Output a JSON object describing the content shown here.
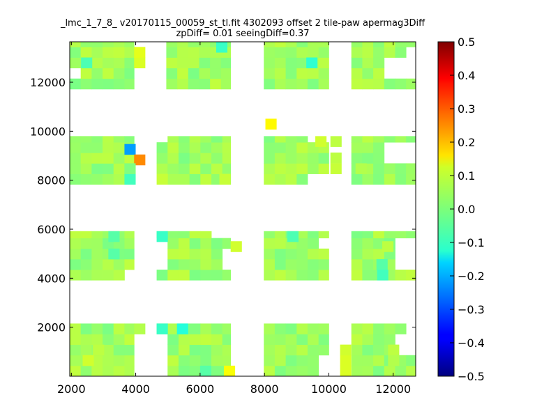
{
  "chart_data": {
    "type": "heatmap",
    "title": "_lmc_1_7_8_ v20170115_00059_st_tl.fit 4302093 offset 2 tile-paw apermag3Diff",
    "subtitle": "zpDiff= 0.01 seeingDiff=0.37",
    "xlabel": "",
    "ylabel": "",
    "xlim": [
      1950,
      12700
    ],
    "ylim": [
      0,
      13650
    ],
    "xticks": [
      2000,
      4000,
      6000,
      8000,
      10000,
      12000
    ],
    "yticks": [
      2000,
      4000,
      6000,
      8000,
      10000,
      12000
    ],
    "colorbar": {
      "range": [
        -0.5,
        0.5
      ],
      "ticks": [
        "0.5",
        "0.4",
        "0.3",
        "0.2",
        "0.1",
        "0.0",
        "−0.1",
        "−0.2",
        "−0.3",
        "−0.4",
        "−0.5"
      ],
      "colormap": "jet"
    },
    "cell_size": [
      340,
      430
    ],
    "default_value": 0.03,
    "blocks": [
      {
        "x": [
          1950,
          3950
        ],
        "y": [
          11720,
          13650
        ]
      },
      {
        "x": [
          4950,
          6950
        ],
        "y": [
          11720,
          13650
        ]
      },
      {
        "x": [
          7980,
          10000
        ],
        "y": [
          11720,
          13650
        ]
      },
      {
        "x": [
          10700,
          12700
        ],
        "y": [
          11720,
          13650
        ]
      },
      {
        "x": [
          1950,
          3950
        ],
        "y": [
          7830,
          9800
        ]
      },
      {
        "x": [
          4650,
          6950
        ],
        "y": [
          7830,
          9800
        ]
      },
      {
        "x": [
          7980,
          10000
        ],
        "y": [
          7830,
          9800
        ]
      },
      {
        "x": [
          10700,
          12700
        ],
        "y": [
          7830,
          9800
        ]
      },
      {
        "x": [
          1950,
          3950
        ],
        "y": [
          3920,
          5920
        ]
      },
      {
        "x": [
          4650,
          6950
        ],
        "y": [
          3920,
          5920
        ]
      },
      {
        "x": [
          7980,
          10000
        ],
        "y": [
          3920,
          5920
        ]
      },
      {
        "x": [
          10700,
          12700
        ],
        "y": [
          3920,
          5920
        ]
      },
      {
        "x": [
          1950,
          3950
        ],
        "y": [
          0,
          2150
        ]
      },
      {
        "x": [
          4650,
          6950
        ],
        "y": [
          0,
          2150
        ]
      },
      {
        "x": [
          7980,
          10000
        ],
        "y": [
          0,
          2150
        ]
      },
      {
        "x": [
          10700,
          12700
        ],
        "y": [
          0,
          2150
        ]
      }
    ],
    "gaps": [
      {
        "x": [
          1950,
          2300
        ],
        "y": [
          12150,
          12580
        ]
      },
      {
        "x": [
          3950,
          4300
        ],
        "y": [
          11720,
          12150
        ]
      },
      {
        "x": [
          11850,
          12700
        ],
        "y": [
          12150,
          13220
        ]
      },
      {
        "x": [
          12350,
          12700
        ],
        "y": [
          13220,
          13650
        ]
      },
      {
        "x": [
          11850,
          12700
        ],
        "y": [
          8700,
          9550
        ]
      },
      {
        "x": [
          9200,
          9500
        ],
        "y": [
          8300,
          8700
        ]
      },
      {
        "x": [
          9500,
          10000
        ],
        "y": [
          7830,
          8300
        ]
      },
      {
        "x": [
          4650,
          4950
        ],
        "y": [
          9370,
          9800
        ]
      },
      {
        "x": [
          4650,
          4950
        ],
        "y": [
          7830,
          8300
        ]
      },
      {
        "x": [
          9500,
          10000
        ],
        "y": [
          9370,
          9800
        ]
      },
      {
        "x": [
          6350,
          6950
        ],
        "y": [
          5500,
          5920
        ]
      },
      {
        "x": [
          6600,
          6950
        ],
        "y": [
          4350,
          5080
        ]
      },
      {
        "x": [
          4650,
          4950
        ],
        "y": [
          4350,
          5500
        ]
      },
      {
        "x": [
          3600,
          3950
        ],
        "y": [
          3920,
          4350
        ]
      },
      {
        "x": [
          11950,
          12700
        ],
        "y": [
          4350,
          5500
        ]
      },
      {
        "x": [
          9600,
          10000
        ],
        "y": [
          5080,
          5500
        ]
      },
      {
        "x": [
          4650,
          4950
        ],
        "y": [
          0,
          1700
        ]
      },
      {
        "x": [
          11950,
          12700
        ],
        "y": [
          1020,
          1700
        ]
      },
      {
        "x": [
          12350,
          12700
        ],
        "y": [
          1700,
          2150
        ]
      },
      {
        "x": [
          9800,
          10000
        ],
        "y": [
          0,
          1000
        ]
      }
    ],
    "cells": [
      {
        "x": 3950,
        "y": 12580,
        "value": 0.09
      },
      {
        "x": 3950,
        "y": 13010,
        "value": 0.1
      },
      {
        "x": 2300,
        "y": 12580,
        "value": -0.05
      },
      {
        "x": 6500,
        "y": 13220,
        "value": -0.07
      },
      {
        "x": 9300,
        "y": 12580,
        "value": -0.08
      },
      {
        "x": 8030,
        "y": 10080,
        "value": 0.13
      },
      {
        "x": 3650,
        "y": 9050,
        "value": -0.22
      },
      {
        "x": 3950,
        "y": 8620,
        "value": 0.24
      },
      {
        "x": 3650,
        "y": 7830,
        "value": -0.06
      },
      {
        "x": 3650,
        "y": 8260,
        "value": 0.0
      },
      {
        "x": 9580,
        "y": 9370,
        "value": 0.08
      },
      {
        "x": 10050,
        "y": 8700,
        "value": 0.06
      },
      {
        "x": 10050,
        "y": 9370,
        "value": 0.06
      },
      {
        "x": 10050,
        "y": 8260,
        "value": 0.07
      },
      {
        "x": 10830,
        "y": 8260,
        "value": 0.05
      },
      {
        "x": 6600,
        "y": 7830,
        "value": 0.07
      },
      {
        "x": 4650,
        "y": 7830,
        "value": 0.07
      },
      {
        "x": 4650,
        "y": 5490,
        "value": -0.07
      },
      {
        "x": 6950,
        "y": 5080,
        "value": 0.08
      },
      {
        "x": 3150,
        "y": 4780,
        "value": -0.04
      },
      {
        "x": 3150,
        "y": 5490,
        "value": -0.04
      },
      {
        "x": 8710,
        "y": 5490,
        "value": -0.05
      },
      {
        "x": 11480,
        "y": 4350,
        "value": -0.04
      },
      {
        "x": 11500,
        "y": 3920,
        "value": -0.06
      },
      {
        "x": 11660,
        "y": 5080,
        "value": 0.06
      },
      {
        "x": 3950,
        "y": 1720,
        "value": 0.05
      },
      {
        "x": 4650,
        "y": 1720,
        "value": -0.07
      },
      {
        "x": 5280,
        "y": 1720,
        "value": -0.09
      },
      {
        "x": 2670,
        "y": 860,
        "value": 0.06
      },
      {
        "x": 2350,
        "y": 430,
        "value": 0.08
      },
      {
        "x": 6740,
        "y": 0,
        "value": 0.12
      },
      {
        "x": 6000,
        "y": 0,
        "value": -0.04
      },
      {
        "x": 10350,
        "y": 0,
        "value": 0.09
      },
      {
        "x": 10350,
        "y": 430,
        "value": 0.09
      },
      {
        "x": 10350,
        "y": 860,
        "value": 0.08
      },
      {
        "x": 11840,
        "y": 860,
        "value": 0.06
      },
      {
        "x": 11840,
        "y": 430,
        "value": 0.05
      }
    ]
  }
}
